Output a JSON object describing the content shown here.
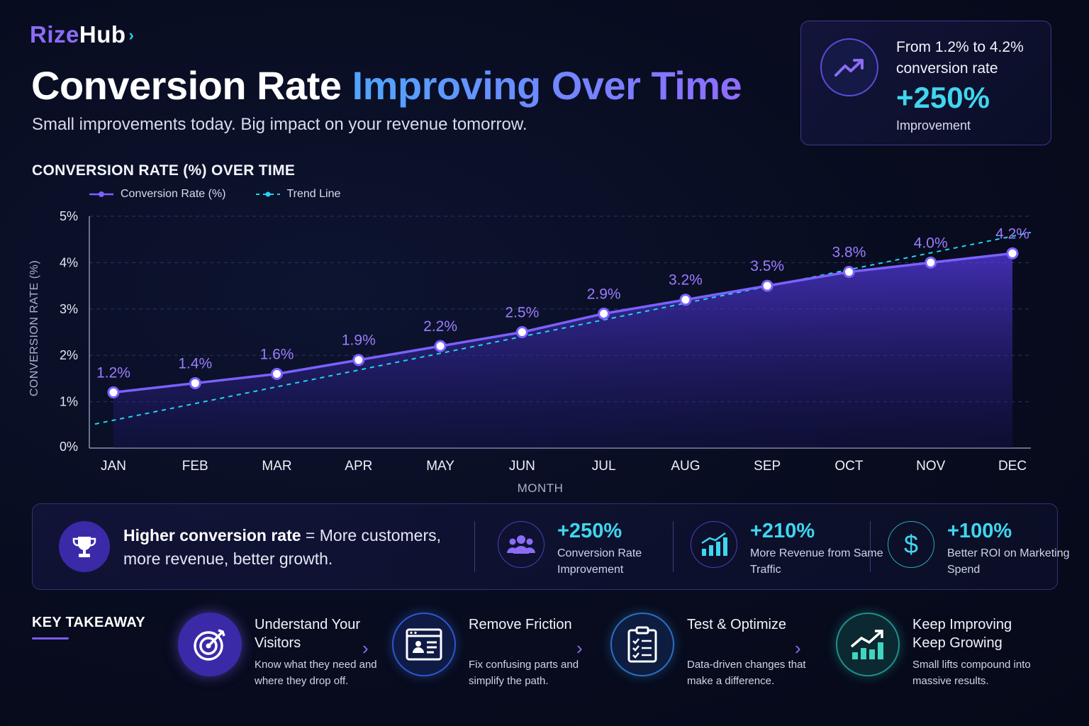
{
  "brand": {
    "part1": "Rize",
    "part2": "Hub",
    "arrow": "›"
  },
  "header": {
    "title_main": "Conversion Rate",
    "title_highlight": "Improving Over Time",
    "subtitle": "Small improvements today. Big impact on your revenue tomorrow."
  },
  "stat_card": {
    "icon": "trending-up-icon",
    "line1": "From 1.2% to 4.2% conversion rate",
    "big": "+250%",
    "small": "Improvement"
  },
  "chart_heading": "CONVERSION RATE (%) OVER TIME",
  "colors": {
    "line": "#7b61ff",
    "trend": "#22d3ee",
    "label": "#9b7cff",
    "accent": "#3fd6ee"
  },
  "chart_data": {
    "type": "line",
    "categories": [
      "JAN",
      "FEB",
      "MAR",
      "APR",
      "MAY",
      "JUN",
      "JUL",
      "AUG",
      "SEP",
      "OCT",
      "NOV",
      "DEC"
    ],
    "series": [
      {
        "name": "Conversion Rate (%)",
        "values": [
          1.2,
          1.4,
          1.6,
          1.9,
          2.2,
          2.5,
          2.9,
          3.2,
          3.5,
          3.8,
          4.0,
          4.2
        ]
      },
      {
        "name": "Trend Line",
        "values": [
          0.6,
          0.96,
          1.32,
          1.68,
          2.04,
          2.4,
          2.77,
          3.13,
          3.49,
          3.85,
          4.21,
          4.57
        ]
      }
    ],
    "data_labels": [
      "1.2%",
      "1.4%",
      "1.6%",
      "1.9%",
      "2.2%",
      "2.5%",
      "2.9%",
      "3.2%",
      "3.5%",
      "3.8%",
      "4.0%",
      "4.2%"
    ],
    "y_ticks": [
      "0%",
      "1%",
      "2%",
      "3%",
      "4%",
      "5%"
    ],
    "ylim": [
      0,
      5
    ],
    "xlabel": "MONTH",
    "ylabel": "CONVERSION RATE (%)",
    "grid": true,
    "legend_position": "top-left"
  },
  "info_strip": {
    "icon": "trophy-icon",
    "bold": "Higher conversion rate",
    "text": " = More customers, more revenue, better growth.",
    "metrics": [
      {
        "icon": "users-icon",
        "value": "+250%",
        "label": "Conversion Rate Improvement"
      },
      {
        "icon": "bar-chart-icon",
        "value": "+210%",
        "label": "More Revenue from Same Traffic"
      },
      {
        "icon": "dollar-icon",
        "value": "+100%",
        "label": "Better ROI on Marketing Spend"
      }
    ]
  },
  "takeaway": {
    "title": "KEY TAKEAWAY",
    "steps": [
      {
        "icon": "target-icon",
        "heading": "Understand Your Visitors",
        "desc": "Know what they need and where they drop off."
      },
      {
        "icon": "profile-window-icon",
        "heading": "Remove Friction",
        "desc": "Fix confusing parts and simplify the path."
      },
      {
        "icon": "clipboard-checklist-icon",
        "heading": "Test & Optimize",
        "desc": "Data-driven changes that make a difference."
      },
      {
        "icon": "growth-chart-icon",
        "heading": "Keep Improving Keep Growing",
        "desc": "Small lifts compound into massive results."
      }
    ]
  }
}
